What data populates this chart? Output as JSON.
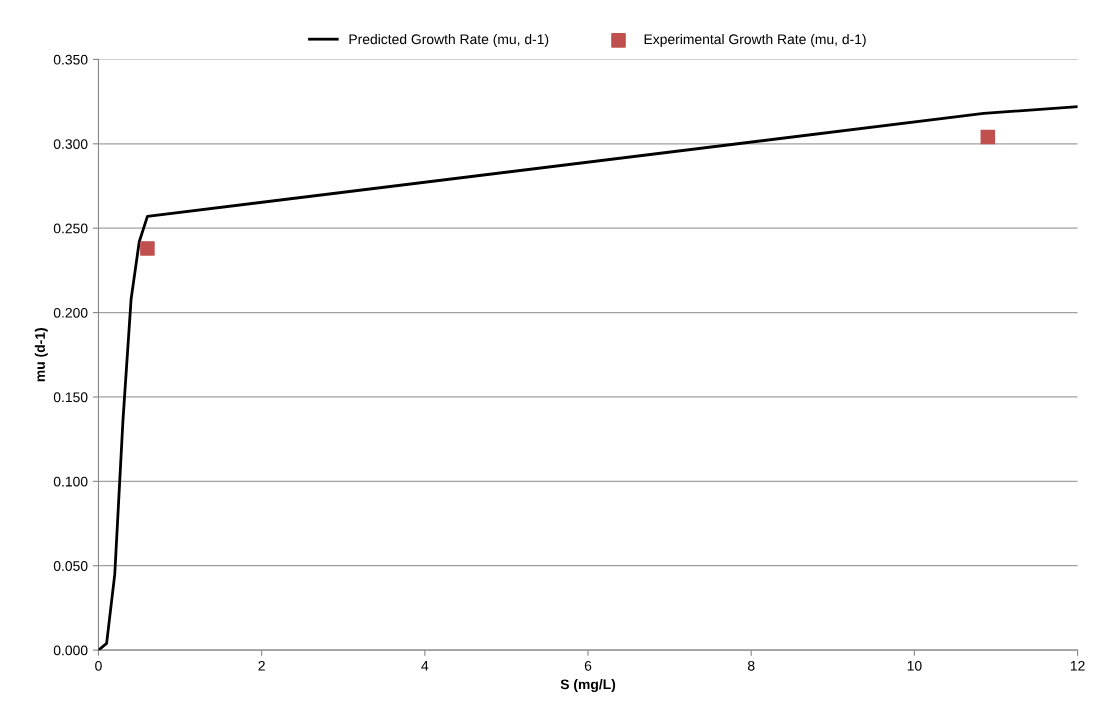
{
  "chart_data": {
    "type": "line",
    "xlabel": "S (mg/L)",
    "ylabel": "mu (d-1)",
    "xlim": [
      0,
      12
    ],
    "xticks": [
      0,
      2,
      4,
      6,
      8,
      10,
      12
    ],
    "ylim": [
      0,
      0.35
    ],
    "yticks": [
      {
        "value": 0,
        "label": "0.000"
      },
      {
        "value": 0.05,
        "label": "0.050"
      },
      {
        "value": 0.1,
        "label": "0.100"
      },
      {
        "value": 0.15,
        "label": "0.150"
      },
      {
        "value": 0.2,
        "label": "0.200"
      },
      {
        "value": 0.25,
        "label": "0.250"
      },
      {
        "value": 0.3,
        "label": "0.300"
      },
      {
        "value": 0.35,
        "label": "0.350"
      }
    ],
    "grid": "y",
    "legend": "top",
    "series": [
      {
        "name": "Predicted Growth Rate (mu, d-1)",
        "color": "#000000",
        "marker": "none",
        "x": [
          0,
          0.1,
          0.2,
          0.3,
          0.4,
          0.5,
          0.6,
          10.85,
          12
        ],
        "values": [
          0,
          0.004,
          0.045,
          0.136,
          0.208,
          0.242,
          0.257,
          0.318,
          0.322
        ]
      },
      {
        "name": "Experimental Growth Rate (mu, d-1)",
        "type": "scatter",
        "color": "#c0504d",
        "marker": "square",
        "x": [
          0.6,
          10.9
        ],
        "values": [
          0.238,
          0.304
        ]
      }
    ]
  }
}
